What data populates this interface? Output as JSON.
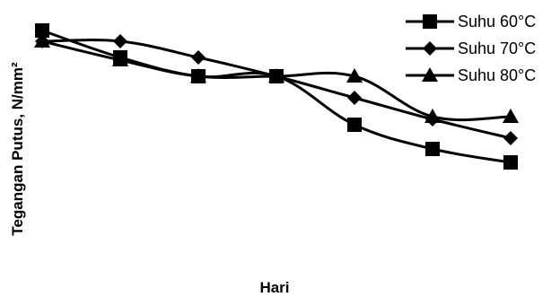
{
  "chart_data": {
    "type": "line",
    "xlabel": "Hari",
    "ylabel": "Tegangan Putus, N/mm²",
    "x": [
      1,
      2,
      3,
      4,
      5,
      6,
      7
    ],
    "ylim": [
      0,
      10
    ],
    "grid": false,
    "legend_position": "top-right",
    "series": [
      {
        "name": "Suhu 60°C",
        "marker": "square",
        "color": "#000000",
        "values": [
          9.0,
          8.0,
          7.3,
          7.3,
          5.5,
          4.6,
          4.1
        ]
      },
      {
        "name": "Suhu 70°C",
        "marker": "diamond",
        "color": "#000000",
        "values": [
          8.6,
          8.6,
          8.0,
          7.3,
          6.5,
          5.7,
          5.0
        ]
      },
      {
        "name": "Suhu 80°C",
        "marker": "triangle",
        "color": "#000000",
        "values": [
          8.6,
          7.9,
          7.3,
          7.3,
          7.3,
          5.8,
          5.8
        ]
      }
    ]
  }
}
